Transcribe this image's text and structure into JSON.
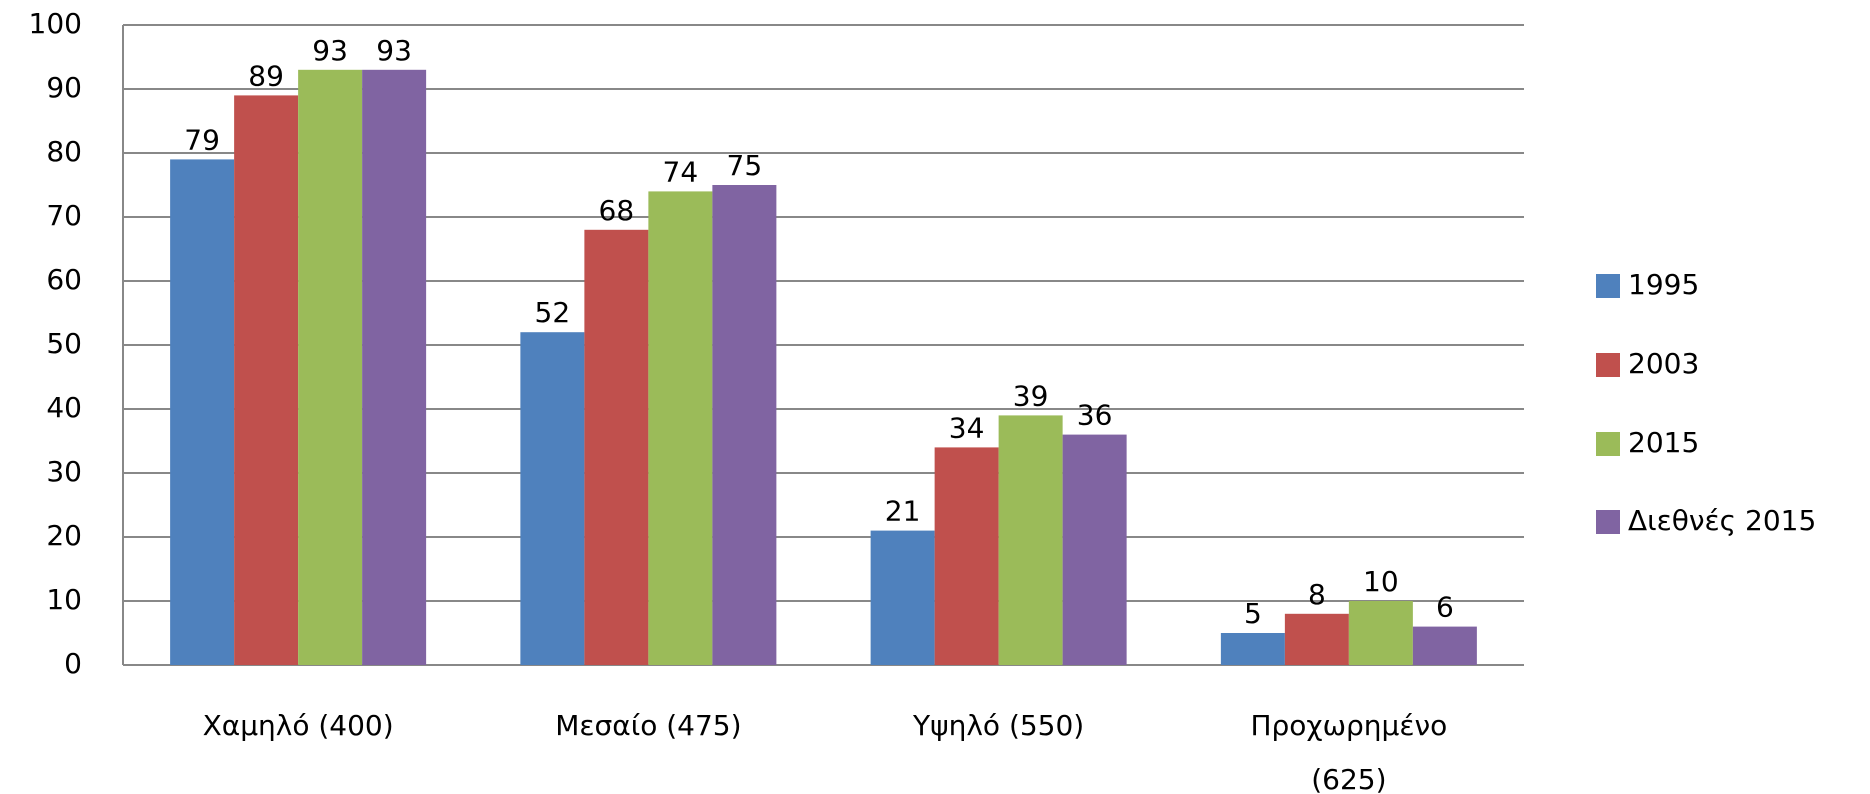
{
  "chart_data": {
    "type": "bar",
    "categories": [
      "Χαμηλό (400)",
      "Μεσαίο (475)",
      "Υψηλό (550)",
      "Προχωρημένο (625)"
    ],
    "series": [
      {
        "name": "1995",
        "color": "#4f81bd",
        "values": [
          79,
          52,
          21,
          5
        ]
      },
      {
        "name": "2003",
        "color": "#c0504d",
        "values": [
          89,
          68,
          34,
          8
        ]
      },
      {
        "name": "2015",
        "color": "#9bbb59",
        "values": [
          93,
          74,
          39,
          10
        ]
      },
      {
        "name": "Διεθνές 2015",
        "color": "#8064a2",
        "values": [
          93,
          75,
          36,
          6
        ]
      }
    ],
    "ylim": [
      0,
      100
    ],
    "yticks": [
      0,
      10,
      20,
      30,
      40,
      50,
      60,
      70,
      80,
      90,
      100
    ],
    "grid": true,
    "legend": "right"
  }
}
